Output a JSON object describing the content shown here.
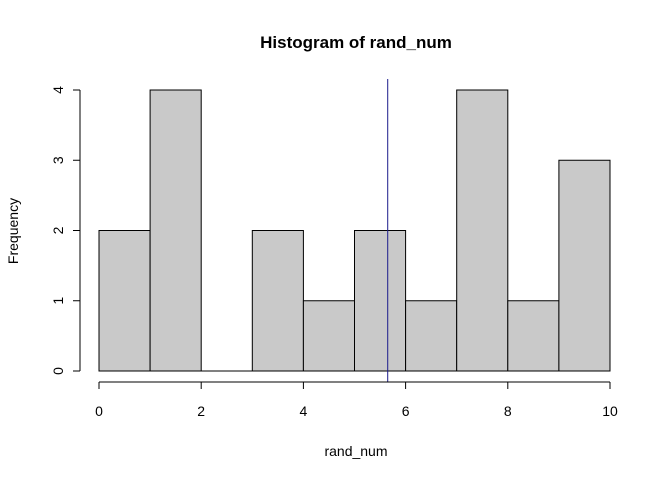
{
  "chart_data": {
    "type": "bar",
    "title": "Histogram of rand_num",
    "xlabel": "rand_num",
    "ylabel": "Frequency",
    "bins": [
      [
        0,
        1
      ],
      [
        1,
        2
      ],
      [
        2,
        3
      ],
      [
        3,
        4
      ],
      [
        4,
        5
      ],
      [
        5,
        6
      ],
      [
        6,
        7
      ],
      [
        7,
        8
      ],
      [
        8,
        9
      ],
      [
        9,
        10
      ]
    ],
    "values": [
      2,
      4,
      0,
      2,
      1,
      2,
      1,
      4,
      1,
      3
    ],
    "xlim": [
      0,
      10
    ],
    "ylim": [
      0,
      4
    ],
    "x_ticks": [
      0,
      2,
      4,
      6,
      8,
      10
    ],
    "y_ticks": [
      0,
      1,
      2,
      3,
      4
    ],
    "reference_line": {
      "x": 5.65,
      "color": "#1a1a8c"
    },
    "bar_fill": "#c9c9c9",
    "bar_stroke": "#000000",
    "grid": false
  }
}
